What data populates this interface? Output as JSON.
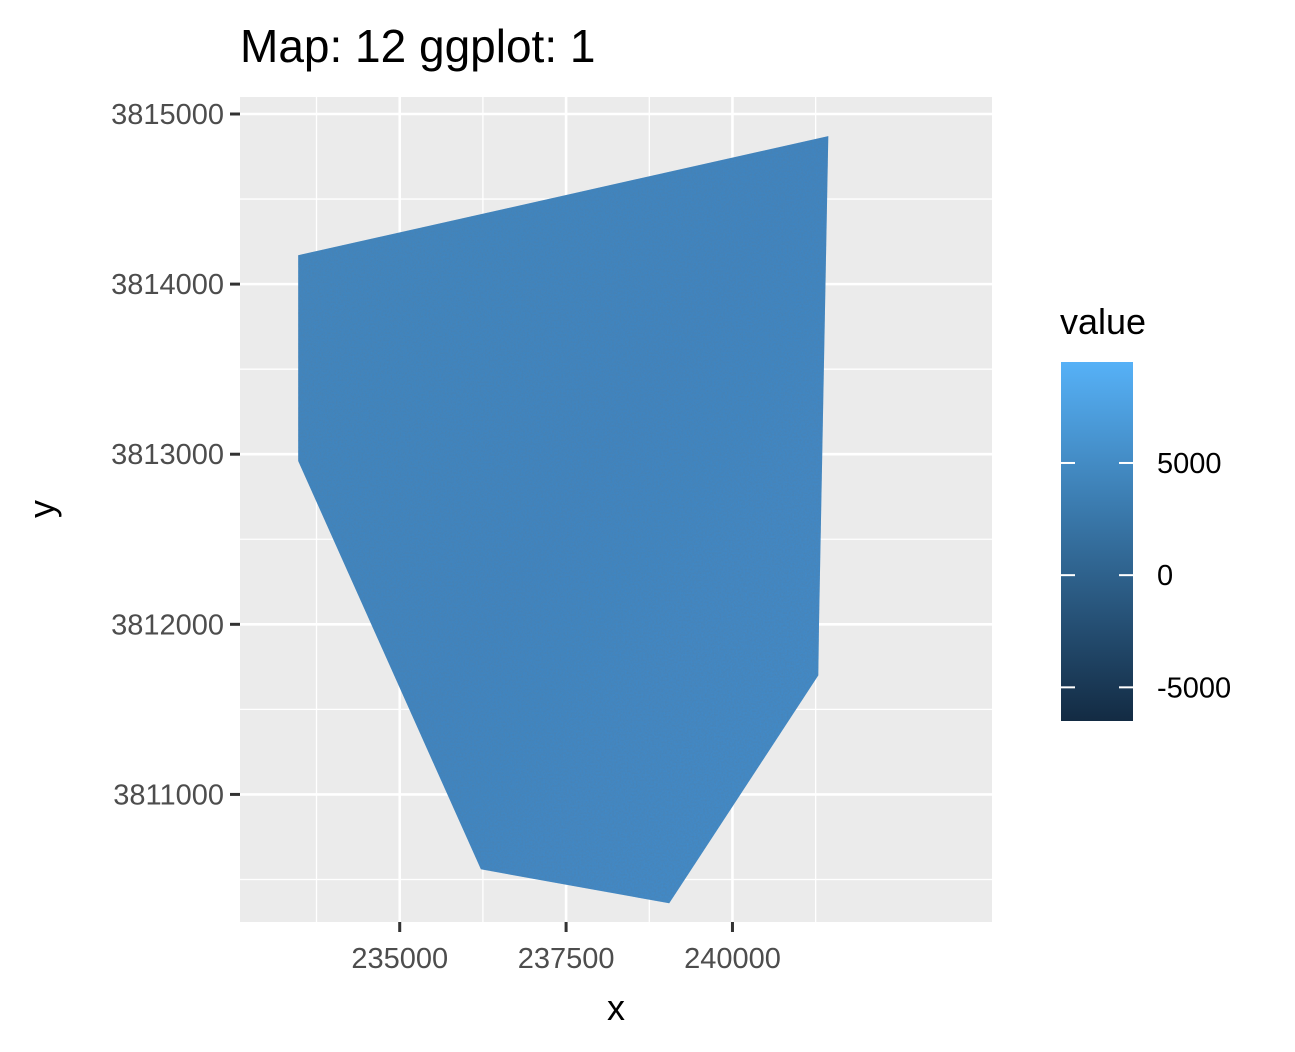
{
  "chart_data": {
    "type": "heatmap",
    "title": "Map: 12  ggplot: 1",
    "xlabel": "x",
    "ylabel": "y",
    "xlim": [
      232600,
      243900
    ],
    "ylim": [
      3810250,
      3815100
    ],
    "x_ticks": [
      {
        "value": 235000,
        "label": "235000"
      },
      {
        "value": 237500,
        "label": "237500"
      },
      {
        "value": 240000,
        "label": "240000"
      }
    ],
    "y_ticks": [
      {
        "value": 3811000,
        "label": "3811000"
      },
      {
        "value": 3812000,
        "label": "3812000"
      },
      {
        "value": 3813000,
        "label": "3813000"
      },
      {
        "value": 3814000,
        "label": "3814000"
      },
      {
        "value": 3815000,
        "label": "3815000"
      }
    ],
    "grid": true,
    "raster_footprint": [
      [
        233475,
        3814170
      ],
      [
        241440,
        3814870
      ],
      [
        241300,
        3812000
      ],
      [
        241290,
        3811700
      ],
      [
        239050,
        3810360
      ],
      [
        236220,
        3810560
      ],
      [
        233475,
        3812960
      ]
    ],
    "legend": {
      "title": "value",
      "position": "right",
      "range": [
        -6500,
        9500
      ],
      "color_low": "#132B43",
      "color_high": "#56B1F7",
      "breaks": [
        {
          "value": -5000,
          "label": "-5000"
        },
        {
          "value": 0,
          "label": "0"
        },
        {
          "value": 5000,
          "label": "5000"
        }
      ]
    }
  }
}
